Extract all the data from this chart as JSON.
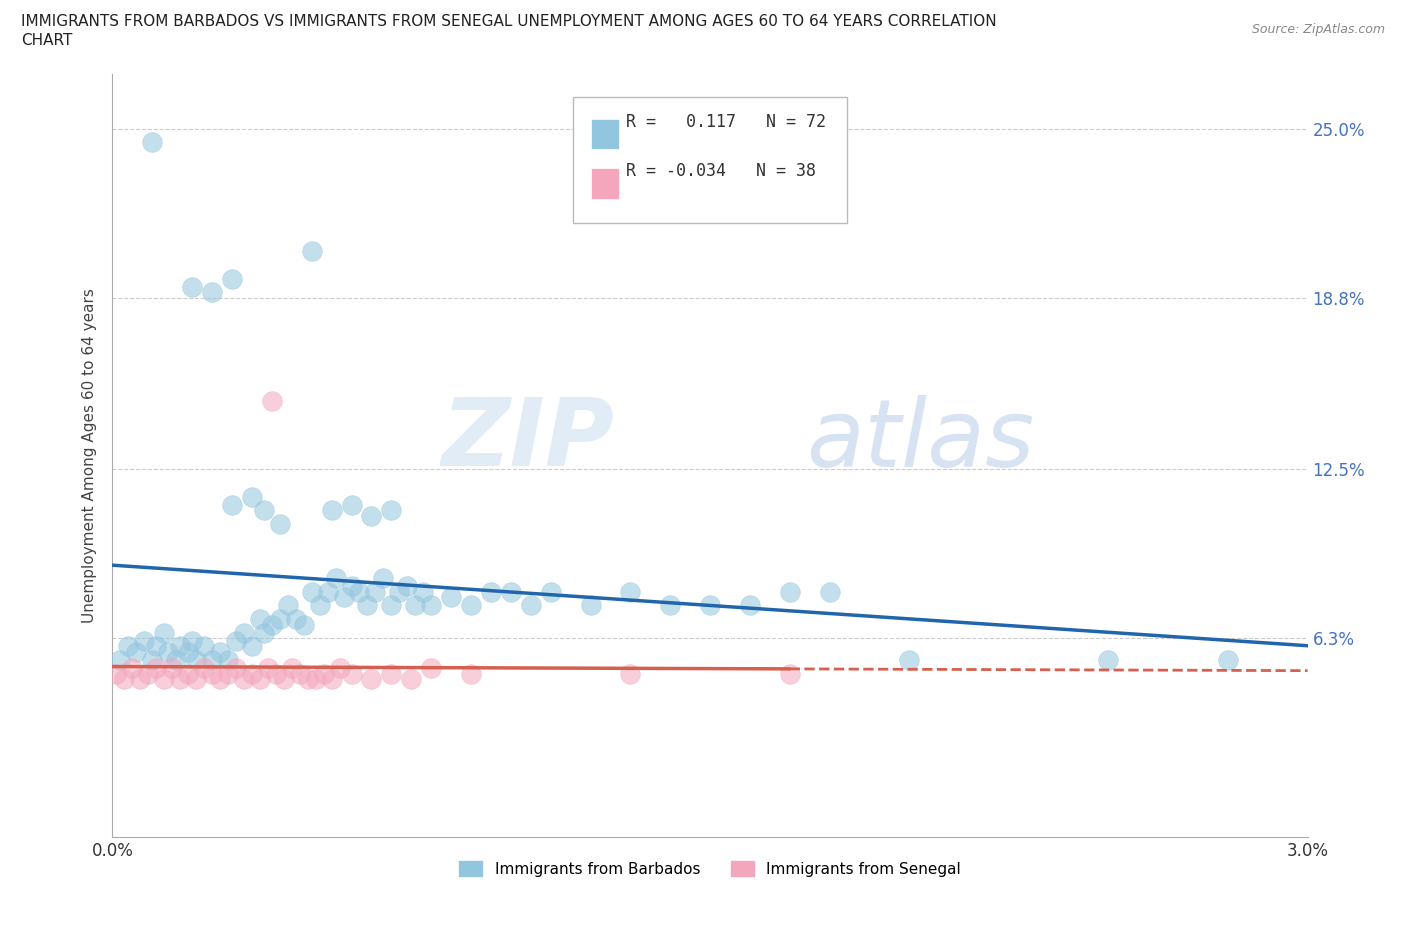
{
  "title_line1": "IMMIGRANTS FROM BARBADOS VS IMMIGRANTS FROM SENEGAL UNEMPLOYMENT AMONG AGES 60 TO 64 YEARS CORRELATION",
  "title_line2": "CHART",
  "source": "Source: ZipAtlas.com",
  "ylabel": "Unemployment Among Ages 60 to 64 years",
  "legend_label1": "Immigrants from Barbados",
  "legend_label2": "Immigrants from Senegal",
  "R1": 0.117,
  "N1": 72,
  "R2": -0.034,
  "N2": 38,
  "xlim": [
    0.0,
    3.0
  ],
  "ylim": [
    -1.0,
    27.0
  ],
  "ytick_positions": [
    0.0,
    6.3,
    12.5,
    18.8,
    25.0
  ],
  "ytick_labels_right": [
    "",
    "6.3%",
    "12.5%",
    "18.8%",
    "25.0%"
  ],
  "xtick_positions": [
    0.0,
    3.0
  ],
  "xtick_labels": [
    "0.0%",
    "3.0%"
  ],
  "color_blue": "#92c5de",
  "color_pink": "#f4a6bd",
  "trend_blue": "#2166ac",
  "trend_pink": "#d6604d",
  "watermark_zip": "ZIP",
  "watermark_atlas": "atlas",
  "barbados_x": [
    0.02,
    0.04,
    0.06,
    0.08,
    0.1,
    0.11,
    0.13,
    0.14,
    0.16,
    0.17,
    0.19,
    0.2,
    0.21,
    0.23,
    0.25,
    0.27,
    0.29,
    0.31,
    0.33,
    0.35,
    0.37,
    0.38,
    0.4,
    0.42,
    0.44,
    0.46,
    0.48,
    0.5,
    0.52,
    0.54,
    0.56,
    0.58,
    0.6,
    0.62,
    0.64,
    0.66,
    0.68,
    0.7,
    0.72,
    0.74,
    0.76,
    0.78,
    0.8,
    0.85,
    0.9,
    0.95,
    1.0,
    1.05,
    1.1,
    1.2,
    1.3,
    1.4,
    1.5,
    1.6,
    1.7,
    1.8,
    2.0,
    2.5,
    2.8,
    0.1,
    0.2,
    0.25,
    0.3,
    0.3,
    0.35,
    0.38,
    0.42,
    0.5,
    0.55,
    0.6,
    0.65,
    0.7
  ],
  "barbados_y": [
    5.5,
    6.0,
    5.8,
    6.2,
    5.5,
    6.0,
    6.5,
    5.8,
    5.5,
    6.0,
    5.8,
    6.2,
    5.5,
    6.0,
    5.5,
    5.8,
    5.5,
    6.2,
    6.5,
    6.0,
    7.0,
    6.5,
    6.8,
    7.0,
    7.5,
    7.0,
    6.8,
    8.0,
    7.5,
    8.0,
    8.5,
    7.8,
    8.2,
    8.0,
    7.5,
    8.0,
    8.5,
    7.5,
    8.0,
    8.2,
    7.5,
    8.0,
    7.5,
    7.8,
    7.5,
    8.0,
    8.0,
    7.5,
    8.0,
    7.5,
    8.0,
    7.5,
    7.5,
    7.5,
    8.0,
    8.0,
    5.5,
    5.5,
    5.5,
    24.5,
    19.2,
    19.0,
    19.5,
    11.2,
    11.5,
    11.0,
    10.5,
    20.5,
    11.0,
    11.2,
    10.8,
    11.0
  ],
  "senegal_x": [
    0.01,
    0.03,
    0.05,
    0.07,
    0.09,
    0.11,
    0.13,
    0.15,
    0.17,
    0.19,
    0.21,
    0.23,
    0.25,
    0.27,
    0.29,
    0.31,
    0.33,
    0.35,
    0.37,
    0.39,
    0.41,
    0.43,
    0.45,
    0.47,
    0.49,
    0.51,
    0.53,
    0.55,
    0.57,
    0.6,
    0.65,
    0.7,
    0.75,
    0.8,
    0.9,
    1.3,
    1.7,
    0.4
  ],
  "senegal_y": [
    5.0,
    4.8,
    5.2,
    4.8,
    5.0,
    5.2,
    4.8,
    5.2,
    4.8,
    5.0,
    4.8,
    5.2,
    5.0,
    4.8,
    5.0,
    5.2,
    4.8,
    5.0,
    4.8,
    5.2,
    5.0,
    4.8,
    5.2,
    5.0,
    4.8,
    4.8,
    5.0,
    4.8,
    5.2,
    5.0,
    4.8,
    5.0,
    4.8,
    5.2,
    5.0,
    5.0,
    5.0,
    15.0
  ]
}
